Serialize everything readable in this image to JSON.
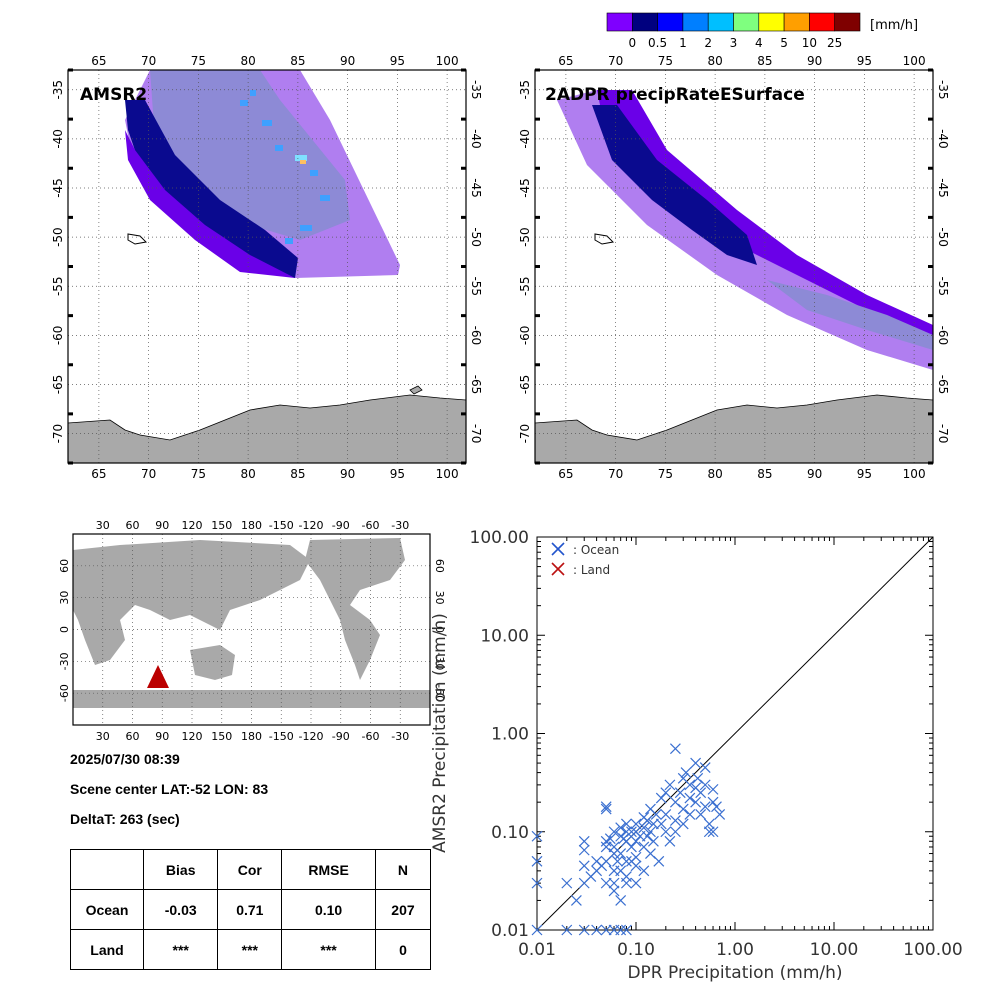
{
  "colorbar": {
    "colors": [
      "#7f00ff",
      "#00007f",
      "#0000ff",
      "#007fff",
      "#00bfff",
      "#7fff7f",
      "#ffff00",
      "#ff9f00",
      "#ff0000",
      "#7f0000"
    ],
    "labels": [
      "0",
      "0.5",
      "1",
      "2",
      "3",
      "4",
      "5",
      "10",
      "25"
    ],
    "unit": "[mm/h]"
  },
  "map_left": {
    "title": "AMSR2",
    "lon_ticks": [
      "65",
      "70",
      "75",
      "80",
      "85",
      "90",
      "95",
      "100"
    ],
    "lat_ticks": [
      "-35",
      "-40",
      "-45",
      "-50",
      "-55",
      "-60",
      "-65",
      "-70"
    ]
  },
  "map_right": {
    "title": "2ADPR precipRateESurface",
    "lon_ticks": [
      "65",
      "70",
      "75",
      "80",
      "85",
      "90",
      "95",
      "100"
    ],
    "lat_ticks": [
      "-35",
      "-40",
      "-45",
      "-50",
      "-55",
      "-60",
      "-65",
      "-70"
    ]
  },
  "world_map": {
    "lon_ticks": [
      "30",
      "60",
      "90",
      "120",
      "150",
      "180",
      "-150",
      "-120",
      "-90",
      "-60",
      "-30"
    ],
    "lat_ticks": [
      "60",
      "30",
      "0",
      "-30",
      "-60"
    ]
  },
  "info": {
    "datetime": "2025/07/30 08:39",
    "scene_label": "Scene center LAT:-52   LON:  83",
    "delta_label": "DeltaT:  263 (sec)"
  },
  "stats_table": {
    "headers": [
      "",
      "Bias",
      "Cor",
      "RMSE",
      "N"
    ],
    "rows": [
      [
        "Ocean",
        "-0.03",
        "0.71",
        "0.10",
        "207"
      ],
      [
        "Land",
        "***",
        "***",
        "***",
        "0"
      ]
    ]
  },
  "chart_data": {
    "type": "scatter",
    "xlabel": "DPR Precipitation (mm/h)",
    "ylabel": "AMSR2 Precipitation (mm/h)",
    "xscale": "log",
    "yscale": "log",
    "xlim": [
      0.01,
      100
    ],
    "ylim": [
      0.01,
      100
    ],
    "x_tick_labels": [
      "0.01",
      "0.10",
      "1.00",
      "10.00",
      "100.00"
    ],
    "y_tick_labels": [
      "0.01",
      "0.10",
      "1.00",
      "10.00",
      "100.00"
    ],
    "legend": [
      {
        "label": ": Ocean",
        "color": "#2255cc"
      },
      {
        "label": ": Land",
        "color": "#bb1111"
      }
    ],
    "legend_position": "top-left",
    "reference_line": "y = x",
    "series": [
      {
        "name": "Ocean",
        "color": "#3a6fd0",
        "points": [
          [
            0.01,
            0.09
          ],
          [
            0.01,
            0.05
          ],
          [
            0.01,
            0.03
          ],
          [
            0.01,
            0.01
          ],
          [
            0.02,
            0.03
          ],
          [
            0.02,
            0.01
          ],
          [
            0.025,
            0.02
          ],
          [
            0.03,
            0.08
          ],
          [
            0.03,
            0.065
          ],
          [
            0.03,
            0.045
          ],
          [
            0.03,
            0.03
          ],
          [
            0.03,
            0.01
          ],
          [
            0.035,
            0.035
          ],
          [
            0.04,
            0.05
          ],
          [
            0.04,
            0.04
          ],
          [
            0.04,
            0.01
          ],
          [
            0.045,
            0.045
          ],
          [
            0.05,
            0.18
          ],
          [
            0.05,
            0.17
          ],
          [
            0.05,
            0.08
          ],
          [
            0.05,
            0.07
          ],
          [
            0.05,
            0.05
          ],
          [
            0.05,
            0.03
          ],
          [
            0.05,
            0.01
          ],
          [
            0.055,
            0.085
          ],
          [
            0.06,
            0.1
          ],
          [
            0.06,
            0.07
          ],
          [
            0.06,
            0.06
          ],
          [
            0.06,
            0.04
          ],
          [
            0.06,
            0.03
          ],
          [
            0.06,
            0.025
          ],
          [
            0.06,
            0.01
          ],
          [
            0.065,
            0.05
          ],
          [
            0.07,
            0.11
          ],
          [
            0.07,
            0.09
          ],
          [
            0.07,
            0.06
          ],
          [
            0.07,
            0.04
          ],
          [
            0.07,
            0.02
          ],
          [
            0.07,
            0.01
          ],
          [
            0.075,
            0.085
          ],
          [
            0.08,
            0.12
          ],
          [
            0.08,
            0.1
          ],
          [
            0.08,
            0.08
          ],
          [
            0.08,
            0.05
          ],
          [
            0.08,
            0.035
          ],
          [
            0.08,
            0.03
          ],
          [
            0.08,
            0.01
          ],
          [
            0.09,
            0.1
          ],
          [
            0.09,
            0.07
          ],
          [
            0.09,
            0.05
          ],
          [
            0.1,
            0.12
          ],
          [
            0.1,
            0.1
          ],
          [
            0.1,
            0.08
          ],
          [
            0.1,
            0.055
          ],
          [
            0.1,
            0.045
          ],
          [
            0.1,
            0.03
          ],
          [
            0.11,
            0.09
          ],
          [
            0.12,
            0.14
          ],
          [
            0.12,
            0.11
          ],
          [
            0.12,
            0.07
          ],
          [
            0.12,
            0.04
          ],
          [
            0.13,
            0.13
          ],
          [
            0.13,
            0.09
          ],
          [
            0.14,
            0.17
          ],
          [
            0.14,
            0.1
          ],
          [
            0.14,
            0.06
          ],
          [
            0.15,
            0.12
          ],
          [
            0.15,
            0.08
          ],
          [
            0.16,
            0.15
          ],
          [
            0.17,
            0.05
          ],
          [
            0.18,
            0.22
          ],
          [
            0.18,
            0.12
          ],
          [
            0.2,
            0.25
          ],
          [
            0.2,
            0.15
          ],
          [
            0.2,
            0.1
          ],
          [
            0.22,
            0.3
          ],
          [
            0.22,
            0.08
          ],
          [
            0.25,
            0.7
          ],
          [
            0.25,
            0.2
          ],
          [
            0.25,
            0.13
          ],
          [
            0.25,
            0.1
          ],
          [
            0.28,
            0.25
          ],
          [
            0.3,
            0.35
          ],
          [
            0.3,
            0.17
          ],
          [
            0.3,
            0.12
          ],
          [
            0.32,
            0.4
          ],
          [
            0.35,
            0.3
          ],
          [
            0.35,
            0.22
          ],
          [
            0.35,
            0.15
          ],
          [
            0.4,
            0.5
          ],
          [
            0.4,
            0.28
          ],
          [
            0.4,
            0.2
          ],
          [
            0.42,
            0.35
          ],
          [
            0.45,
            0.25
          ],
          [
            0.45,
            0.15
          ],
          [
            0.5,
            0.45
          ],
          [
            0.5,
            0.3
          ],
          [
            0.5,
            0.18
          ],
          [
            0.55,
            0.1
          ],
          [
            0.55,
            0.12
          ],
          [
            0.6,
            0.27
          ],
          [
            0.6,
            0.2
          ],
          [
            0.6,
            0.1
          ],
          [
            0.65,
            0.18
          ],
          [
            0.7,
            0.15
          ]
        ]
      },
      {
        "name": "Land",
        "color": "#bb1111",
        "points": []
      }
    ]
  }
}
